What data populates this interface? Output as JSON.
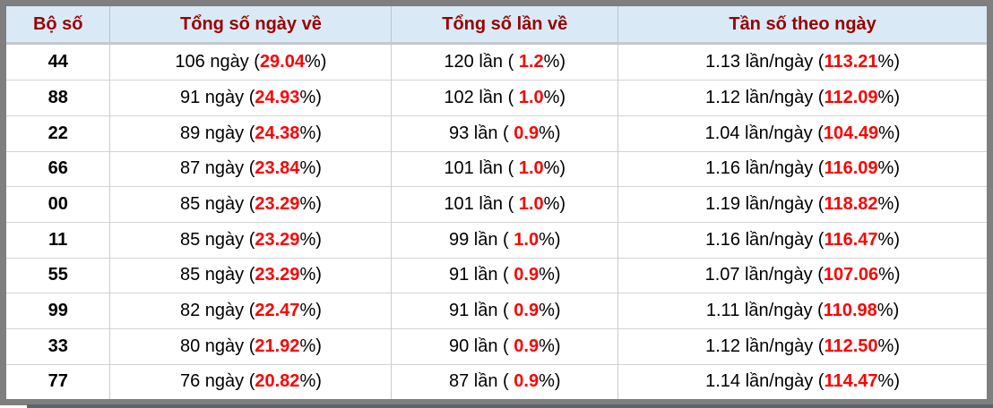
{
  "table": {
    "title": "lottery-pair-statistics",
    "headers": [
      "Bộ số",
      "Tổng số ngày về",
      "Tổng số lần về",
      "Tần số theo ngày"
    ],
    "colors": {
      "header_text": "#990000",
      "header_bg": "#d9eaf6",
      "highlight": "#fe0000",
      "outer_border": "#7f7f7f"
    },
    "rows": [
      {
        "pair": "44",
        "days": [
          "106 ngày (",
          "29.04",
          "%)"
        ],
        "times": [
          "120 lần ( ",
          "1.2",
          "%)"
        ],
        "freq": [
          "1.13 lần/ngày (",
          "113.21",
          "%)"
        ]
      },
      {
        "pair": "88",
        "days": [
          "91 ngày (",
          "24.93",
          "%)"
        ],
        "times": [
          "102 lần ( ",
          "1.0",
          "%)"
        ],
        "freq": [
          "1.12 lần/ngày (",
          "112.09",
          "%)"
        ]
      },
      {
        "pair": "22",
        "days": [
          "89 ngày (",
          "24.38",
          "%)"
        ],
        "times": [
          "93 lần ( ",
          "0.9",
          "%)"
        ],
        "freq": [
          "1.04 lần/ngày (",
          "104.49",
          "%)"
        ]
      },
      {
        "pair": "66",
        "days": [
          "87 ngày (",
          "23.84",
          "%)"
        ],
        "times": [
          "101 lần ( ",
          "1.0",
          "%)"
        ],
        "freq": [
          "1.16 lần/ngày (",
          "116.09",
          "%)"
        ]
      },
      {
        "pair": "00",
        "days": [
          "85 ngày (",
          "23.29",
          "%)"
        ],
        "times": [
          "101 lần ( ",
          "1.0",
          "%)"
        ],
        "freq": [
          "1.19 lần/ngày (",
          "118.82",
          "%)"
        ]
      },
      {
        "pair": "11",
        "days": [
          "85 ngày (",
          "23.29",
          "%)"
        ],
        "times": [
          "99 lần ( ",
          "1.0",
          "%)"
        ],
        "freq": [
          "1.16 lần/ngày (",
          "116.47",
          "%)"
        ]
      },
      {
        "pair": "55",
        "days": [
          "85 ngày (",
          "23.29",
          "%)"
        ],
        "times": [
          "91 lần ( ",
          "0.9",
          "%)"
        ],
        "freq": [
          "1.07 lần/ngày (",
          "107.06",
          "%)"
        ]
      },
      {
        "pair": "99",
        "days": [
          "82 ngày (",
          "22.47",
          "%)"
        ],
        "times": [
          "91 lần ( ",
          "0.9",
          "%)"
        ],
        "freq": [
          "1.11 lần/ngày (",
          "110.98",
          "%)"
        ]
      },
      {
        "pair": "33",
        "days": [
          "80 ngày (",
          "21.92",
          "%)"
        ],
        "times": [
          "90 lần ( ",
          "0.9",
          "%)"
        ],
        "freq": [
          "1.12 lần/ngày (",
          "112.50",
          "%)"
        ]
      },
      {
        "pair": "77",
        "days": [
          "76 ngày (",
          "20.82",
          "%)"
        ],
        "times": [
          "87 lần ( ",
          "0.9",
          "%)"
        ],
        "freq": [
          "1.14 lần/ngày (",
          "114.47",
          "%)"
        ]
      }
    ]
  }
}
